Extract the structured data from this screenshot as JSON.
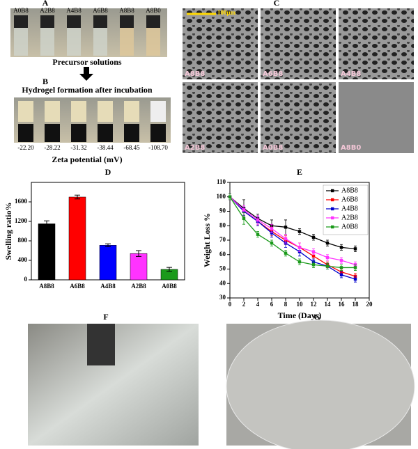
{
  "panels": {
    "A": {
      "label": "A",
      "vials": [
        "A0B8",
        "A2B8",
        "A4B8",
        "A6B8",
        "A8B8",
        "A8B0"
      ],
      "caption": "Precursor solutions"
    },
    "B": {
      "label": "B",
      "caption": "Hydrogel formation after incubation",
      "zeta": [
        "-22.20",
        "-28.22",
        "-31.32",
        "-38.44",
        "-68.45",
        "-108.70"
      ],
      "axis_label": "Zeta potential (mV)"
    },
    "C": {
      "label": "C",
      "scale_bar": "100μm",
      "images": [
        "A8B8",
        "A6B8",
        "A4B8",
        "A2B8",
        "A0B8",
        "A8B0"
      ]
    },
    "F": {
      "label": "F"
    },
    "G": {
      "label": "G"
    }
  },
  "chart_data": [
    {
      "type": "bar",
      "label": "D",
      "ylabel": "Swelling ratio%",
      "categories": [
        "A8B8",
        "A6B8",
        "A4B8",
        "A2B8",
        "A0B8"
      ],
      "values": [
        1150,
        1700,
        710,
        540,
        215
      ],
      "errors": [
        60,
        40,
        30,
        60,
        40
      ],
      "colors": [
        "#000000",
        "#ff0000",
        "#0000ff",
        "#ff33ff",
        "#1a9a1a"
      ],
      "ylim": [
        0,
        2000
      ],
      "yticks": [
        0,
        400,
        800,
        1200,
        1600
      ]
    },
    {
      "type": "line",
      "label": "E",
      "xlabel": "Time (Days)",
      "ylabel": "Weight Loss %",
      "x": [
        0,
        2,
        4,
        6,
        8,
        10,
        12,
        14,
        16,
        18
      ],
      "xlim": [
        0,
        20
      ],
      "xticks": [
        0,
        2,
        4,
        6,
        8,
        10,
        12,
        14,
        16,
        18,
        20
      ],
      "ylim": [
        30,
        110
      ],
      "yticks": [
        30,
        40,
        50,
        60,
        70,
        80,
        90,
        100,
        110
      ],
      "legend": "upper-right",
      "series": [
        {
          "name": "A8B8",
          "color": "#000000",
          "values": [
            100,
            92,
            85,
            80,
            79,
            76,
            72,
            68,
            65,
            64
          ],
          "errors": [
            2,
            6,
            3,
            4,
            5,
            2,
            2,
            2,
            2,
            2
          ]
        },
        {
          "name": "A6B8",
          "color": "#ff0000",
          "values": [
            100,
            90,
            83,
            76,
            70,
            65,
            59,
            53,
            48,
            45
          ],
          "errors": [
            2,
            3,
            3,
            3,
            3,
            3,
            2,
            2,
            2,
            2
          ]
        },
        {
          "name": "A4B8",
          "color": "#0000cc",
          "values": [
            100,
            90,
            83,
            75,
            68,
            62,
            55,
            52,
            46,
            43
          ],
          "errors": [
            2,
            3,
            3,
            3,
            3,
            3,
            2,
            2,
            2,
            2
          ]
        },
        {
          "name": "A2B8",
          "color": "#ff33ff",
          "values": [
            100,
            91,
            84,
            78,
            71,
            65,
            62,
            58,
            56,
            53
          ],
          "errors": [
            2,
            3,
            3,
            3,
            3,
            3,
            2,
            2,
            2,
            2
          ]
        },
        {
          "name": "A0B8",
          "color": "#1a9a1a",
          "values": [
            100,
            85,
            74,
            68,
            61,
            55,
            53,
            52,
            51,
            51
          ],
          "errors": [
            2,
            4,
            2,
            2,
            2,
            2,
            2,
            2,
            2,
            2
          ]
        }
      ]
    }
  ]
}
